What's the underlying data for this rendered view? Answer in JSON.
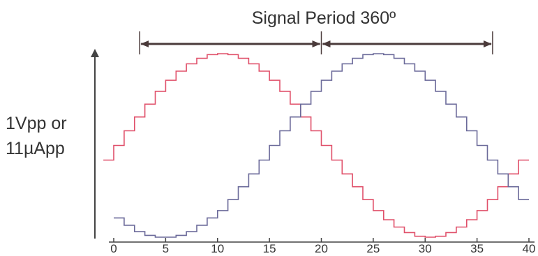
{
  "chart_data": {
    "type": "line",
    "title": "Signal Period 360º",
    "ylabel_lines": [
      "1Vpp or",
      "11µApp"
    ],
    "xlabel": "",
    "x_ticks": [
      0,
      5,
      10,
      15,
      20,
      25,
      30,
      35,
      40
    ],
    "xlim": [
      0,
      40
    ],
    "ylim": [
      -1,
      1
    ],
    "series": [
      {
        "color": "#e0506a",
        "x": [
          -1,
          0,
          1,
          2,
          3,
          4,
          5,
          6,
          7,
          8,
          9,
          10,
          11,
          12,
          13,
          14,
          15,
          16,
          17,
          18,
          19,
          20,
          21,
          22,
          23,
          24,
          25,
          26,
          27,
          28,
          29,
          30,
          31,
          32,
          33,
          34,
          35,
          36,
          37,
          38,
          39
        ],
        "y": [
          -0.16,
          0.0,
          0.16,
          0.31,
          0.45,
          0.59,
          0.71,
          0.81,
          0.89,
          0.95,
          0.99,
          1.0,
          0.99,
          0.95,
          0.89,
          0.81,
          0.71,
          0.59,
          0.45,
          0.31,
          0.16,
          0.0,
          -0.16,
          -0.31,
          -0.45,
          -0.59,
          -0.71,
          -0.81,
          -0.89,
          -0.95,
          -0.99,
          -1.0,
          -0.99,
          -0.95,
          -0.89,
          -0.81,
          -0.71,
          -0.59,
          -0.45,
          -0.31,
          -0.16
        ]
      },
      {
        "color": "#6b6a9a",
        "x": [
          0,
          1,
          2,
          3,
          4,
          5,
          6,
          7,
          8,
          9,
          10,
          11,
          12,
          13,
          14,
          15,
          16,
          17,
          18,
          19,
          20,
          21,
          22,
          23,
          24,
          25,
          26,
          27,
          28,
          29,
          30,
          31,
          32,
          33,
          34,
          35,
          36,
          37,
          38,
          39
        ],
        "y": [
          -0.79,
          -0.87,
          -0.94,
          -0.98,
          -1.0,
          -1.0,
          -0.98,
          -0.94,
          -0.87,
          -0.79,
          -0.71,
          -0.59,
          -0.45,
          -0.31,
          -0.16,
          0.0,
          0.16,
          0.31,
          0.45,
          0.59,
          0.71,
          0.81,
          0.89,
          0.95,
          0.99,
          1.0,
          0.99,
          0.95,
          0.89,
          0.81,
          0.71,
          0.59,
          0.45,
          0.31,
          0.16,
          0.0,
          -0.16,
          -0.31,
          -0.45,
          -0.59
        ]
      }
    ],
    "annotations": [
      {
        "label": "",
        "x_start": 2.5,
        "x_end": 20
      },
      {
        "label": "",
        "x_start": 20,
        "x_end": 36.5
      }
    ],
    "grid": false,
    "legend": "none"
  }
}
